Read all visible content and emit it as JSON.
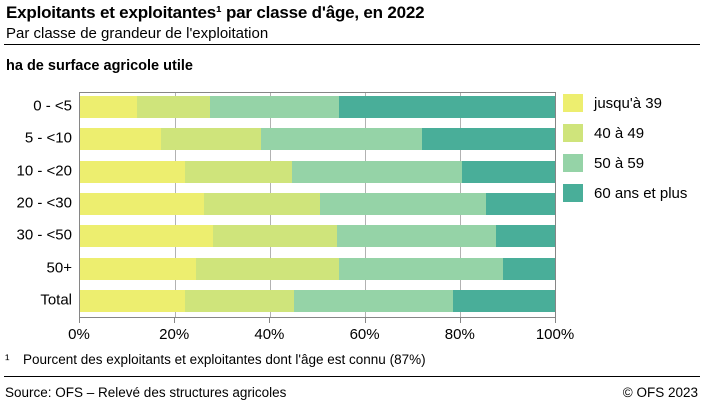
{
  "header": {
    "title": "Exploitants et exploitantes¹ par classe d'âge, en 2022",
    "subtitle": "Par classe de grandeur de l'exploitation"
  },
  "chart": {
    "unit_label": "ha de surface agricole utile",
    "footnote_marker": "¹",
    "footnote": "Pourcent des exploitants et exploitantes dont l'âge est connu (87%)"
  },
  "chart_data": {
    "type": "bar",
    "orientation": "horizontal",
    "stacked": true,
    "unit": "%",
    "title": "Exploitants et exploitantes par classe d'âge, en 2022",
    "xlabel": "",
    "ylabel": "ha de surface agricole utile",
    "categories": [
      "0 - <5",
      "5 - <10",
      "10 - <20",
      "20 - <30",
      "30 - <50",
      "50+",
      "Total"
    ],
    "series": [
      {
        "name": "jusqu'à 39",
        "color": "#edee6f",
        "values": [
          12,
          17,
          22,
          26,
          28,
          24.5,
          22
        ]
      },
      {
        "name": "40 à 49",
        "color": "#cfe47b",
        "values": [
          15.3,
          21,
          22.7,
          24.5,
          26,
          30,
          23
        ]
      },
      {
        "name": "50 à 59",
        "color": "#95d3a7",
        "values": [
          27.2,
          34,
          35.8,
          35,
          33.5,
          34.5,
          33.5
        ]
      },
      {
        "name": "60 ans et plus",
        "color": "#49ae99",
        "values": [
          45.5,
          28,
          19.5,
          14.5,
          12.5,
          11,
          21.5
        ]
      }
    ],
    "x_ticks": [
      "0%",
      "20%",
      "40%",
      "60%",
      "80%",
      "100%"
    ],
    "x_tick_positions": [
      0,
      20,
      40,
      60,
      80,
      100
    ],
    "xlim": [
      0,
      100
    ],
    "gridline_positions": [
      20,
      40,
      60,
      80
    ],
    "grid": true,
    "legend_position": "right"
  },
  "footer": {
    "source": "Source: OFS – Relevé des structures agricoles",
    "copyright": "© OFS 2023"
  }
}
